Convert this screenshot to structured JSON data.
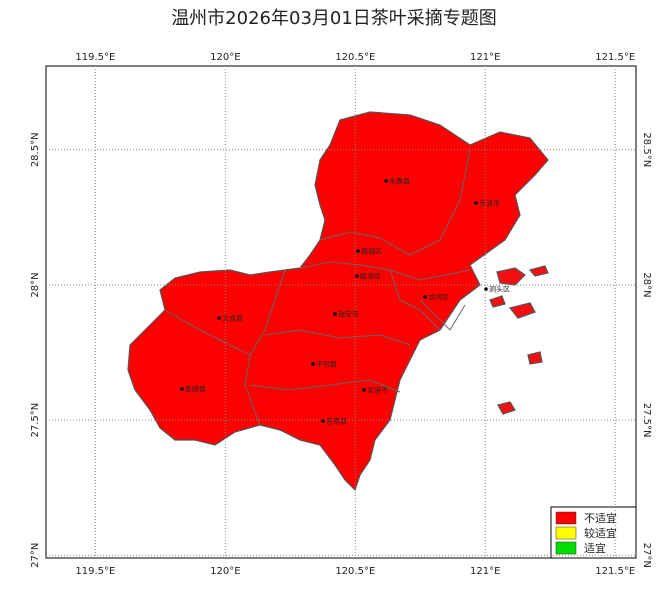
{
  "title": "温州市2026年03月01日茶叶采摘专题图",
  "map": {
    "xlim": [
      119.31,
      121.58
    ],
    "ylim": [
      26.99,
      28.81
    ],
    "xticks": [
      {
        "value": 119.5,
        "label": "119.5°E"
      },
      {
        "value": 120,
        "label": "120°E"
      },
      {
        "value": 120.5,
        "label": "120.5°E"
      },
      {
        "value": 121,
        "label": "121°E"
      },
      {
        "value": 121.5,
        "label": "121.5°E"
      }
    ],
    "yticks": [
      {
        "value": 27,
        "label": "27°N"
      },
      {
        "value": 27.5,
        "label": "27.5°N"
      },
      {
        "value": 28,
        "label": "28°N"
      },
      {
        "value": 28.5,
        "label": "28.5°N"
      }
    ],
    "places": [
      "永嘉县",
      "乐清市",
      "鹿城区",
      "瓯海区",
      "龙湾区",
      "洞头区",
      "文成县",
      "瑞安市",
      "平阳县",
      "龙港市",
      "泰顺县",
      "苍南县"
    ]
  },
  "legend": [
    {
      "name": "不适宜",
      "color": "#ff0000"
    },
    {
      "name": "较适宜",
      "color": "#ffff00"
    },
    {
      "name": "适宜",
      "color": "#00dd00"
    }
  ]
}
